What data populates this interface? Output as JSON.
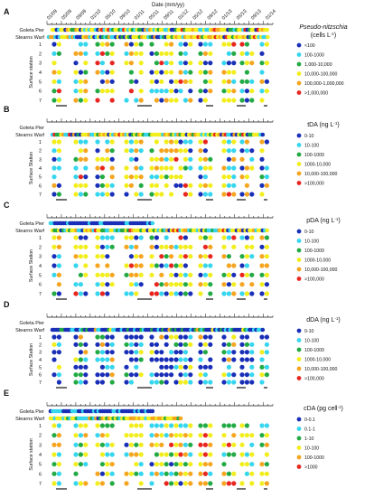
{
  "chart_data": {
    "type": "scatter",
    "x_title": "Date (mm/yy)",
    "dates": [
      "01/09",
      "05/09",
      "09/09",
      "01/10",
      "05/10",
      "09/10",
      "01/11",
      "05/11",
      "09/11",
      "01/12",
      "05/12",
      "09/12",
      "01/13",
      "05/13",
      "09/13",
      "01/14"
    ],
    "stations": [
      "1",
      "2",
      "3",
      "4",
      "5",
      "6",
      "7"
    ],
    "piers": [
      "Goleta Pier",
      "Stearns Warf"
    ],
    "y_axis_label": "Surface station",
    "panels": [
      {
        "letter": "A",
        "title": "Pseudo-nitzschia",
        "unit": "(cells L",
        "unit_sup": "-1",
        "unit_end": ")",
        "stations_label": "Surface station",
        "legend": [
          "<100",
          "100-1000",
          "1,000-10,000",
          "10,000-100,000",
          "100,000-1,000,000",
          ">1,000,000"
        ],
        "colors": [
          "#1a2fb8",
          "#35d6ee",
          "#22aa44",
          "#f2ee1e",
          "#f5a51f",
          "#e8251f"
        ],
        "pier_rows": 2,
        "dense_top": true
      },
      {
        "letter": "B",
        "title": "tDA (ng L",
        "unit_sup": "-1",
        "unit_end": ")",
        "stations_label": "Surface Station",
        "legend": [
          "0-10",
          "10-100",
          "100-1000",
          "1000-10,000",
          "10,000-100,000",
          ">100,000"
        ],
        "colors": [
          "#1a2fb8",
          "#35d6ee",
          "#22aa44",
          "#f2ee1e",
          "#f5a51f",
          "#e8251f"
        ],
        "pier_rows": 2,
        "dense_top": false
      },
      {
        "letter": "C",
        "title": "pDA (ng L",
        "unit_sup": "-1",
        "unit_end": ")",
        "stations_label": "Surface Station",
        "legend": [
          "0-10",
          "10-100",
          "100-1000",
          "1000-10,000",
          "10,000-100,000",
          ">100,000"
        ],
        "colors": [
          "#1a2fb8",
          "#35d6ee",
          "#22aa44",
          "#f2ee1e",
          "#f5a51f",
          "#e8251f"
        ],
        "pier_rows": 2,
        "dense_top": true
      },
      {
        "letter": "D",
        "title": "dDA (ng L",
        "unit_sup": "-1",
        "unit_end": ")",
        "stations_label": "Surface Station",
        "legend": [
          "0-10",
          "10-100",
          "100-1000",
          "1000-10,000",
          "10,000-100,000",
          ">100,000"
        ],
        "colors": [
          "#1a2fb8",
          "#35d6ee",
          "#22aa44",
          "#f2ee1e",
          "#f5a51f",
          "#e8251f"
        ],
        "pier_rows": 2,
        "dense_top": false
      },
      {
        "letter": "E",
        "title": "cDA (pg cell",
        "unit_sup": "-1",
        "unit_end": ")",
        "stations_label": "Surface station",
        "legend": [
          "0-0.1",
          "0.1-1",
          "1-10",
          "10-100",
          "100-1000",
          ">1000"
        ],
        "colors": [
          "#1a2fb8",
          "#35d6ee",
          "#22aa44",
          "#f2ee1e",
          "#f5a51f",
          "#e8251f"
        ],
        "pier_rows": 2,
        "dense_top": true
      }
    ]
  }
}
